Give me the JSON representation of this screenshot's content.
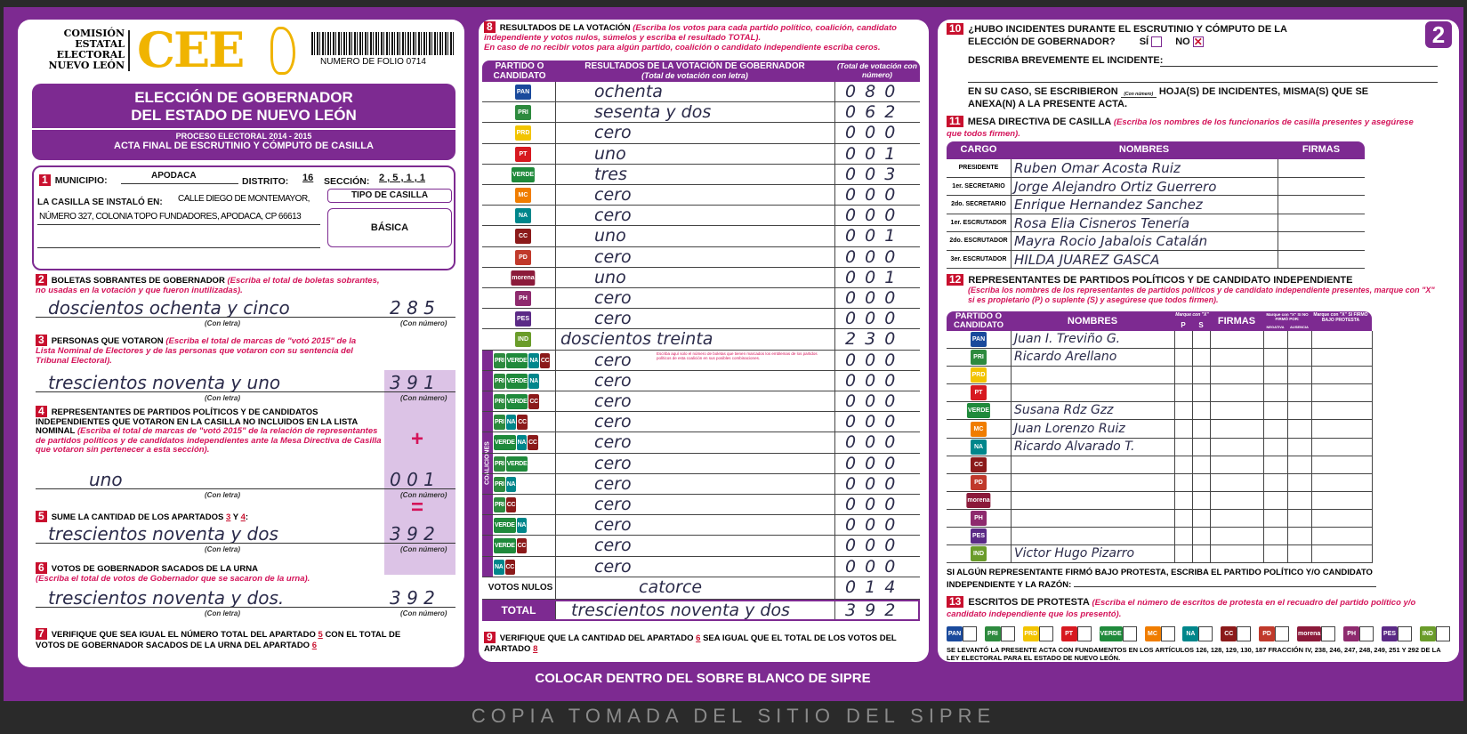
{
  "header": {
    "org": [
      "COMISIÓN",
      "ESTATAL",
      "ELECTORAL",
      "NUEVO LEÓN"
    ],
    "logo": "CEE",
    "folio": "NUMERO DE FOLIO 0714",
    "title1": "ELECCIÓN DE GOBERNADOR",
    "title2": "DEL ESTADO DE NUEVO LEÓN",
    "process": "PROCESO ELECTORAL 2014 - 2015",
    "acta": "ACTA FINAL DE ESCRUTINIO Y CÓMPUTO DE CASILLA",
    "sheet": "2"
  },
  "s1": {
    "n": "1",
    "municipio_label": "MUNICIPIO:",
    "municipio": "APODACA",
    "distrito_label": "DISTRITO:",
    "distrito": "16",
    "seccion_label": "SECCIÓN:",
    "seccion": "2 , 5 , 1 , 1",
    "installed_label": "LA CASILLA SE INSTALÓ EN:",
    "address1": "CALLE DIEGO DE MONTEMAYOR,",
    "address2": "NÚMERO 327, COLONIA TOPO FUNDADORES, APODACA, CP 66613",
    "tipo_label": "TIPO DE CASILLA",
    "tipo": "BÁSICA"
  },
  "labels": {
    "con_letra": "(Con letra)",
    "con_numero": "(Con número)",
    "plus": "+",
    "equals": "="
  },
  "s2": {
    "n": "2",
    "title": "BOLETAS SOBRANTES DE GOBERNADOR",
    "hint": "(Escriba el total de boletas sobrantes, no usadas en la votación y que fueron inutilizadas).",
    "letra": "doscientos ochenta y cinco",
    "numero": "2 8 5"
  },
  "s3": {
    "n": "3",
    "title": "PERSONAS QUE VOTARON",
    "hint": "(Escriba el total de marcas de \"votó 2015\" de la Lista Nominal de Electores y de las personas que votaron con su sentencia del Tribunal Electoral).",
    "letra": "trescientos noventa y uno",
    "numero": "3 9 1"
  },
  "s4": {
    "n": "4",
    "title": "REPRESENTANTES DE PARTIDOS POLÍTICOS Y DE CANDIDATOS INDEPENDIENTES QUE VOTARON EN LA CASILLA NO INCLUIDOS EN LA LISTA NOMINAL",
    "hint": "(Escriba el total de marcas de \"votó 2015\" de la relación de representantes de partidos políticos y de candidatos independientes ante la Mesa Directiva de Casilla que votaron sin pertenecer a esta sección).",
    "letra": "uno",
    "numero": "0 0 1"
  },
  "s5": {
    "n": "5",
    "title": "SUME LA CANTIDAD DE LOS APARTADOS",
    "a": "3",
    "y": "Y",
    "b": "4",
    "colon": ":",
    "letra": "trescientos noventa y dos",
    "numero": "3 9 2"
  },
  "s6": {
    "n": "6",
    "title": "VOTOS DE GOBERNADOR SACADOS DE LA URNA",
    "hint": "(Escriba el total de votos de Gobernador que se sacaron de la urna).",
    "letra": "trescientos noventa y dos.",
    "numero": "3 9 2"
  },
  "s7": {
    "n": "7",
    "text1": "VERIFIQUE QUE SEA IGUAL EL NÚMERO TOTAL DEL APARTADO",
    "a": "5",
    "text2": "CON EL TOTAL DE VOTOS DE GOBERNADOR SACADOS DE LA URNA",
    "text3": "DEL APARTADO",
    "b": "6"
  },
  "s8": {
    "n": "8",
    "title": "RESULTADOS DE LA VOTACIÓN",
    "hint1": "(Escriba los votos para cada partido político, coalición, candidato independiente y votos nulos, súmelos y escriba el resultado TOTAL).",
    "hint2": "En caso de no recibir votos para algún partido, coalición o candidato independiente escriba ceros.",
    "col1": "PARTIDO O CANDIDATO",
    "col2": "RESULTADOS DE LA VOTACIÓN DE GOBERNADOR",
    "col2b": "(Total de votación con letra)",
    "col3": "(Total de votación con número)",
    "coalition_note": "Escriba aquí solo el número de boletas que tienen marcados los emblemas de los partidos políticos de esta coalición en sus posibles combinaciones.",
    "coalition_label": "COALICIONES",
    "nulos_label": "VOTOS NULOS",
    "nulos_letra": "catorce",
    "nulos_num": "0 1 4",
    "total_label": "TOTAL",
    "total_letra": "trescientos noventa y dos",
    "total_num": "3 9 2",
    "rows": [
      {
        "party": "PAN",
        "color": "#1a4a9c",
        "letra": "ochenta",
        "num": "0 8 0"
      },
      {
        "party": "PRI",
        "color": "#2d8a3e",
        "letra": "sesenta y dos",
        "num": "0 6 2"
      },
      {
        "party": "PRD",
        "color": "#f2c400",
        "letra": "cero",
        "num": "0 0 0"
      },
      {
        "party": "PT",
        "color": "#d71920",
        "letra": "uno",
        "num": "0 0 1"
      },
      {
        "party": "VERDE",
        "color": "#1f8a3b",
        "letra": "tres",
        "num": "0 0 3"
      },
      {
        "party": "MC",
        "color": "#f07d00",
        "letra": "cero",
        "num": "0 0 0"
      },
      {
        "party": "NA",
        "color": "#00868b",
        "letra": "cero",
        "num": "0 0 0"
      },
      {
        "party": "CC",
        "color": "#8b1a1a",
        "letra": "uno",
        "num": "0 0 1"
      },
      {
        "party": "PD",
        "color": "#c0392b",
        "letra": "cero",
        "num": "0 0 0"
      },
      {
        "party": "morena",
        "color": "#8b1a3a",
        "letra": "uno",
        "num": "0 0 1"
      },
      {
        "party": "PH",
        "color": "#8e2a6e",
        "letra": "cero",
        "num": "0 0 0"
      },
      {
        "party": "PES",
        "color": "#5b2a86",
        "letra": "cero",
        "num": "0 0 0"
      },
      {
        "party": "IND",
        "color": "#6a9c2a",
        "letra": "doscientos treinta",
        "num": "2 3 0"
      }
    ],
    "coalitions": [
      {
        "parties": [
          "PRI",
          "VERDE",
          "NA",
          "CC"
        ],
        "letra": "cero",
        "num": "0 0 0"
      },
      {
        "parties": [
          "PRI",
          "VERDE",
          "NA"
        ],
        "letra": "cero",
        "num": "0 0 0"
      },
      {
        "parties": [
          "PRI",
          "VERDE",
          "CC"
        ],
        "letra": "cero",
        "num": "0 0 0"
      },
      {
        "parties": [
          "PRI",
          "NA",
          "CC"
        ],
        "letra": "cero",
        "num": "0 0 0"
      },
      {
        "parties": [
          "VERDE",
          "NA",
          "CC"
        ],
        "letra": "cero",
        "num": "0 0 0"
      },
      {
        "parties": [
          "PRI",
          "VERDE"
        ],
        "letra": "cero",
        "num": "0 0 0"
      },
      {
        "parties": [
          "PRI",
          "NA"
        ],
        "letra": "cero",
        "num": "0 0 0"
      },
      {
        "parties": [
          "PRI",
          "CC"
        ],
        "letra": "cero",
        "num": "0 0 0"
      },
      {
        "parties": [
          "VERDE",
          "NA"
        ],
        "letra": "cero",
        "num": "0 0 0"
      },
      {
        "parties": [
          "VERDE",
          "CC"
        ],
        "letra": "cero",
        "num": "0 0 0"
      },
      {
        "parties": [
          "NA",
          "CC"
        ],
        "letra": "cero",
        "num": "0 0 0"
      }
    ]
  },
  "s9": {
    "n": "9",
    "text1": "VERIFIQUE QUE LA CANTIDAD DEL APARTADO",
    "a": "6",
    "text2": "SEA IGUAL QUE EL TOTAL DE LOS VOTOS DEL APARTADO",
    "b": "8"
  },
  "footer_bar": "COLOCAR DENTRO DEL SOBRE BLANCO DE SIPRE",
  "watermark": "COPIA TOMADA DEL SITIO DEL SIPRE",
  "s10": {
    "n": "10",
    "q1": "¿HUBO INCIDENTES DURANTE EL ESCRUTINIO Y CÓMPUTO DE LA",
    "q2": "ELECCIÓN DE GOBERNADOR?",
    "si": "SÍ",
    "no": "NO",
    "no_checked": true,
    "describe": "DESCRIBA BREVEMENTE EL INCIDENTE:",
    "hojas1": "EN SU CASO, SE ESCRIBIERON",
    "hojas_hint": "(Con número)",
    "hojas2": "HOJA(S) DE INCIDENTES, MISMA(S) QUE SE",
    "hojas3": "ANEXA(N) A LA PRESENTE ACTA."
  },
  "s11": {
    "n": "11",
    "title": "MESA DIRECTIVA DE CASILLA",
    "hint": "(Escriba los nombres de los funcionarios de casilla presentes y asegúrese que todos firmen).",
    "cols": [
      "CARGO",
      "NOMBRES",
      "FIRMAS"
    ],
    "rows": [
      {
        "cargo": "PRESIDENTE",
        "nombre": "Ruben Omar Acosta Ruiz"
      },
      {
        "cargo": "1er. SECRETARIO",
        "nombre": "Jorge Alejandro Ortiz Guerrero"
      },
      {
        "cargo": "2do. SECRETARIO",
        "nombre": "Enrique Hernandez Sanchez"
      },
      {
        "cargo": "1er. ESCRUTADOR",
        "nombre": "Rosa Elia Cisneros Tenería"
      },
      {
        "cargo": "2do. ESCRUTADOR",
        "nombre": "Mayra Rocio Jabalois Catalán"
      },
      {
        "cargo": "3er. ESCRUTADOR",
        "nombre": "HILDA JUAREZ GASCA"
      }
    ]
  },
  "s12": {
    "n": "12",
    "title": "REPRESENTANTES DE PARTIDOS POLÍTICOS Y DE CANDIDATO INDEPENDIENTE",
    "hint": "(Escriba los nombres de los representantes de partidos políticos y de candidato independiente presentes, marque con \"X\" si es propietario (P) o suplente (S) y asegúrese que todos firmen).",
    "col_partido": "PARTIDO O CANDIDATO",
    "col_nombres": "NOMBRES",
    "col_marque": "Marque con \"X\"",
    "col_p": "P",
    "col_s": "S",
    "col_firmas": "FIRMAS",
    "col_nofirmo": "Marque con \"X\" SI NO FIRMÓ POR:",
    "col_negativa": "NEGATIVA",
    "col_ausencia": "AUSENCIA",
    "col_protesta": "Marque con \"X\" SI FIRMÓ BAJO PROTESTA",
    "rows": [
      {
        "party": "PAN",
        "nombre": "Juan I. Treviño G."
      },
      {
        "party": "PRI",
        "nombre": "Ricardo Arellano"
      },
      {
        "party": "PRD",
        "nombre": ""
      },
      {
        "party": "PT",
        "nombre": ""
      },
      {
        "party": "VERDE",
        "nombre": "Susana Rdz Gzz"
      },
      {
        "party": "MC",
        "nombre": "Juan Lorenzo Ruiz"
      },
      {
        "party": "NA",
        "nombre": "Ricardo Alvarado T."
      },
      {
        "party": "CC",
        "nombre": ""
      },
      {
        "party": "PD",
        "nombre": ""
      },
      {
        "party": "morena",
        "nombre": ""
      },
      {
        "party": "PH",
        "nombre": ""
      },
      {
        "party": "PES",
        "nombre": ""
      },
      {
        "party": "IND",
        "nombre": "Victor Hugo Pizarro"
      }
    ],
    "protest1": "SI ALGÚN REPRESENTANTE FIRMÓ BAJO PROTESTA, ESCRIBA EL PARTIDO POLÍTICO Y/O CANDIDATO",
    "protest2": "INDEPENDIENTE Y LA RAZÓN:"
  },
  "s13": {
    "n": "13",
    "title": "ESCRITOS DE PROTESTA",
    "hint": "(Escriba el número de escritos de protesta en el recuadro del partido político y/o candidato independiente que los presentó).",
    "boxes": [
      "PAN",
      "PRI",
      "PRD",
      "PT",
      "VERDE",
      "MC",
      "NA",
      "CC",
      "PD",
      "morena",
      "PH",
      "PES",
      "IND"
    ]
  },
  "legal": "SE LEVANTÓ LA PRESENTE ACTA CON FUNDAMENTOS EN LOS ARTÍCULOS 126, 128, 129, 130, 187 FRACCIÓN IV, 238, 246, 247, 248, 249, 251 Y 292 DE LA LEY ELECTORAL PARA EL ESTADO DE NUEVO LEÓN.",
  "colors": {
    "purple": "#7d2a91",
    "red": "#c8102e",
    "hint": "#d4145a",
    "logo": "#f0b400"
  }
}
